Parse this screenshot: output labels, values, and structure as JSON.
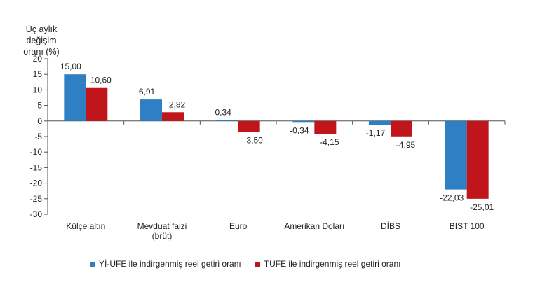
{
  "chart_data": {
    "type": "bar",
    "ylabel_line1": "Üç aylık değişim",
    "ylabel_line2": "oranı (%)",
    "categories": [
      [
        "Külçe altın"
      ],
      [
        "Mevduat faizi",
        "(brüt)"
      ],
      [
        "Euro"
      ],
      [
        "Amerikan Doları"
      ],
      [
        "DİBS"
      ],
      [
        "BIST 100"
      ]
    ],
    "series": [
      {
        "name": "Yİ-ÜFE ile indirgenmiş reel getiri oranı",
        "color": "#2e7fc4",
        "values": [
          15.0,
          6.91,
          0.34,
          -0.34,
          -1.17,
          -22.03
        ],
        "labels": [
          "15,00",
          "6,91",
          "0,34",
          "-0,34",
          "-1,17",
          "-22,03"
        ]
      },
      {
        "name": "TÜFE ile indirgenmiş reel getiri oranı",
        "color": "#c0151b",
        "values": [
          10.6,
          2.82,
          -3.5,
          -4.15,
          -4.95,
          -25.01
        ],
        "labels": [
          "10,60",
          "2,82",
          "-3,50",
          "-4,15",
          "-4,95",
          "-25,01"
        ]
      }
    ],
    "ylim": [
      -30,
      20
    ],
    "yticks": [
      20,
      15,
      10,
      5,
      0,
      -5,
      -10,
      -15,
      -20,
      -25,
      -30
    ],
    "grid": false,
    "legend_position": "bottom"
  }
}
